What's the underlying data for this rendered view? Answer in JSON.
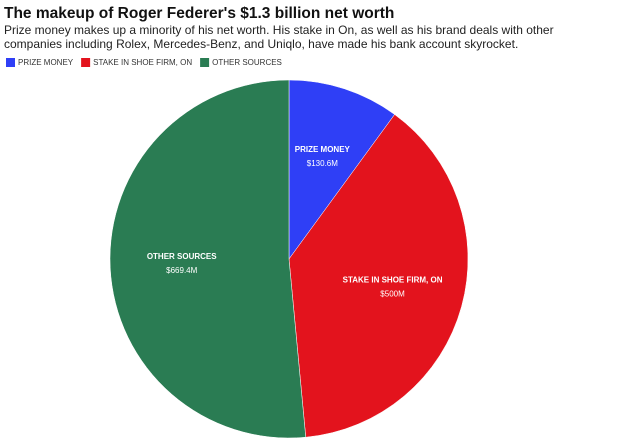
{
  "chart_data": {
    "type": "pie",
    "title": "The makeup of Roger Federer's $1.3 billion net worth",
    "subtitle": [
      "Prize money makes up a minority of his net worth. His stake in On, as well as his brand deals with other",
      "companies including Rolex, Mercedes-Benz, and Uniqlo, have made his bank account skyrocket."
    ],
    "categories": [
      "PRIZE MONEY",
      "STAKE IN SHOE FIRM, ON",
      "OTHER SOURCES"
    ],
    "values": [
      130.6,
      500,
      669.4
    ],
    "value_labels": [
      "$130.6M",
      "$500M",
      "$669.4M"
    ],
    "colors": [
      "#2f3ff6",
      "#e3131d",
      "#2a7c53"
    ]
  }
}
